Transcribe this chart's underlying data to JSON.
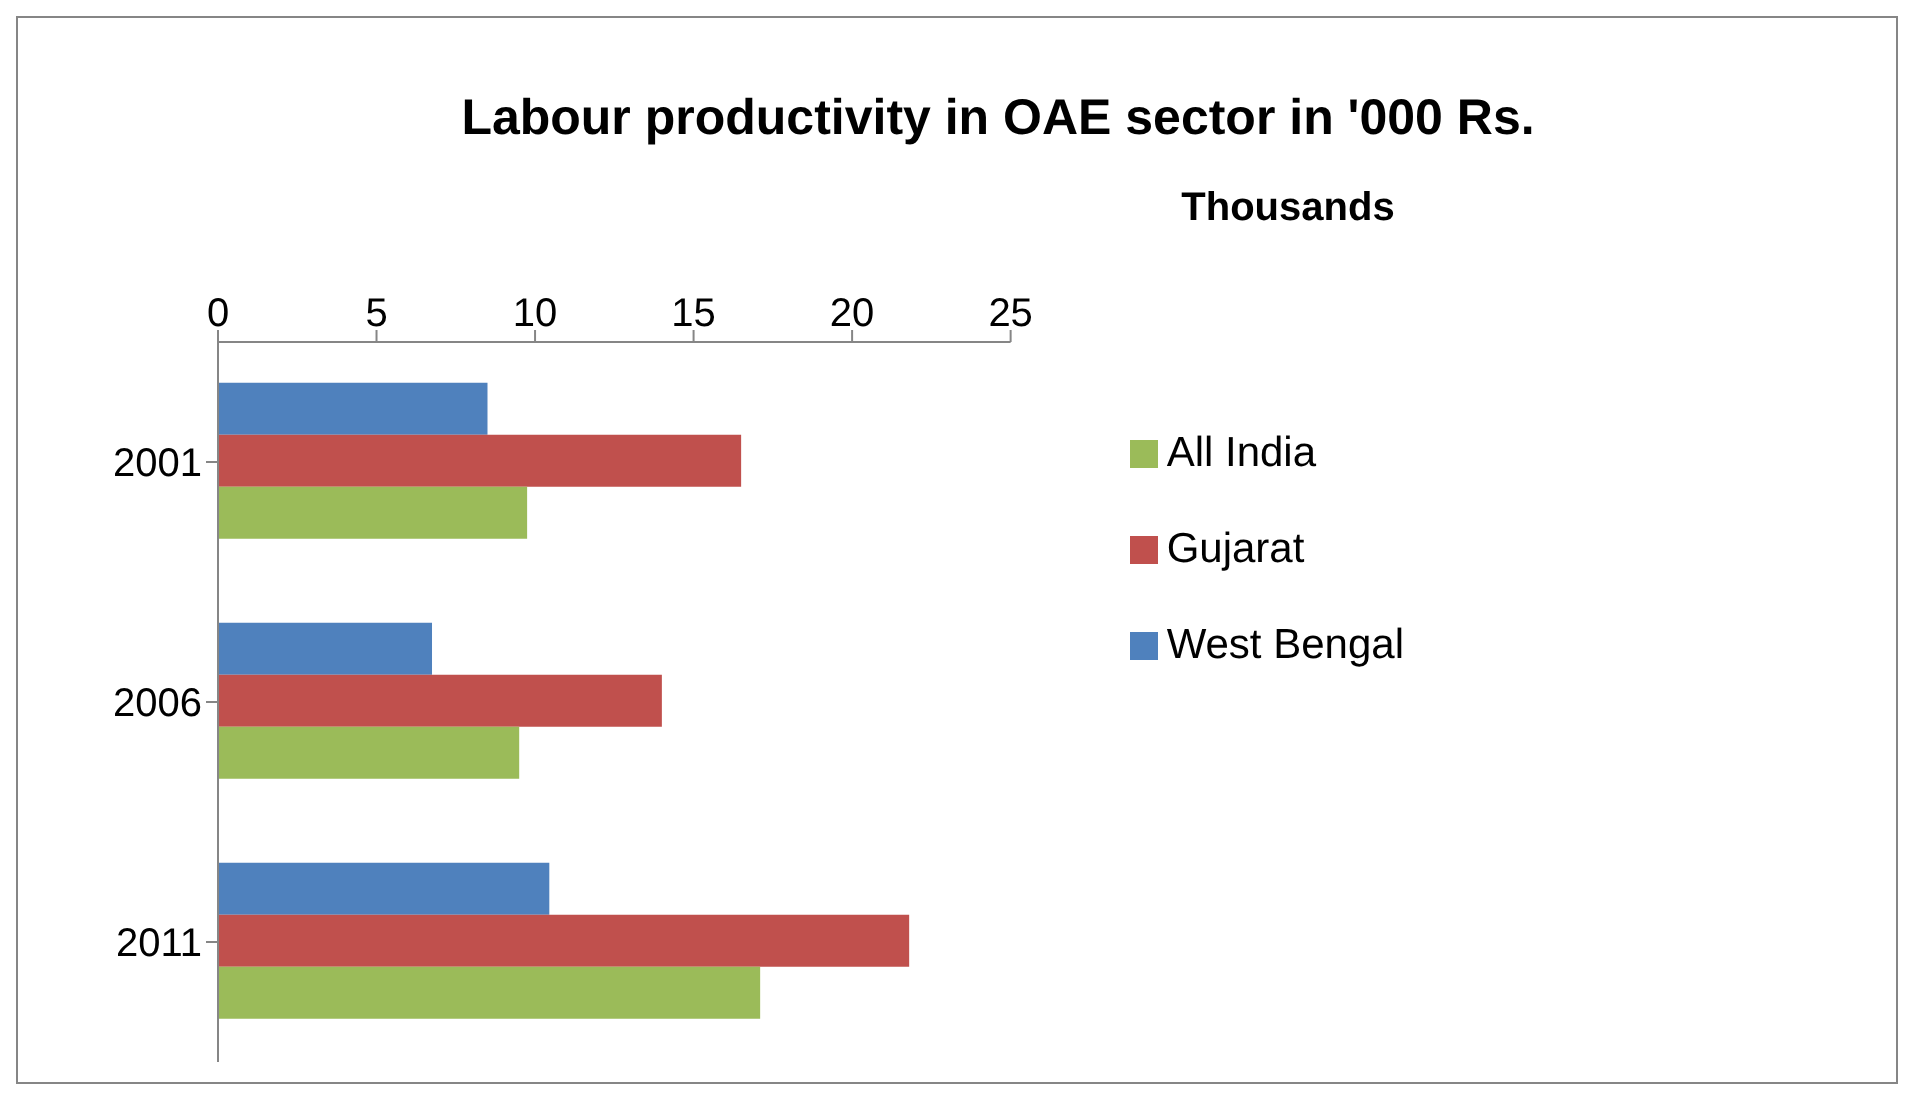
{
  "chart_data": {
    "type": "bar",
    "orientation": "horizontal",
    "title": "Labour productivity in OAE sector in '000 Rs.",
    "xlabel": "Thousands",
    "categories": [
      "2001",
      "2006",
      "2011"
    ],
    "series": [
      {
        "name": "West Bengal",
        "color": "#4f81bd",
        "values": [
          8.5,
          6.75,
          10.45
        ]
      },
      {
        "name": "Gujarat",
        "color": "#c0504d",
        "values": [
          16.5,
          14.0,
          21.8
        ]
      },
      {
        "name": "All India",
        "color": "#9bbb59",
        "values": [
          9.75,
          9.5,
          17.1
        ]
      }
    ],
    "xlim": [
      0,
      25
    ],
    "xticks": [
      0,
      5,
      10,
      15,
      20,
      25
    ],
    "grid": false,
    "legend": "right"
  }
}
